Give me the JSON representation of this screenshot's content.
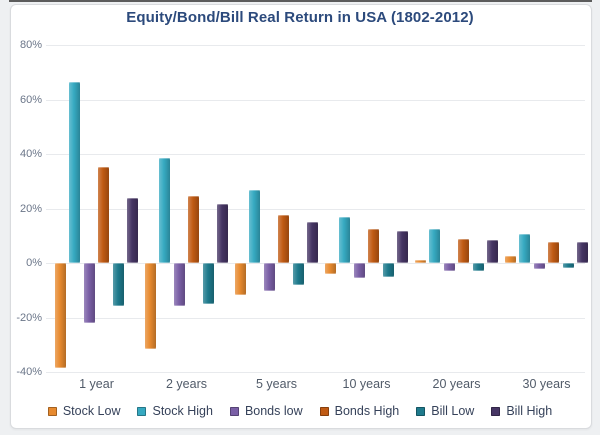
{
  "frame": {
    "top_border_color": "#424242"
  },
  "chart_data": {
    "type": "bar",
    "title": "Equity/Bond/Bill Real Return in USA (1802-2012)",
    "title_color": "#2c4a7c",
    "categories": [
      "1 year",
      "2 years",
      "5 years",
      "10 years",
      "20 years",
      "30 years"
    ],
    "series": [
      {
        "name": "Stock Low",
        "color": "#E78A2F",
        "values": [
          -38.6,
          -31.6,
          -11.9,
          -4.1,
          1.0,
          2.6
        ]
      },
      {
        "name": "Stock High",
        "color": "#36A9C1",
        "values": [
          66.6,
          38.6,
          26.7,
          16.9,
          12.6,
          10.6
        ]
      },
      {
        "name": "Bonds low",
        "color": "#7A5FA6",
        "values": [
          -21.9,
          -15.9,
          -10.1,
          -5.4,
          -3.1,
          -2.0
        ]
      },
      {
        "name": "Bonds High",
        "color": "#C05A13",
        "values": [
          35.1,
          24.7,
          17.7,
          12.4,
          8.8,
          7.8
        ]
      },
      {
        "name": "Bill Low",
        "color": "#1E7A8C",
        "values": [
          -15.6,
          -15.1,
          -8.2,
          -5.1,
          -3.0,
          -1.8
        ]
      },
      {
        "name": "Bill High",
        "color": "#463564",
        "values": [
          23.7,
          21.6,
          14.9,
          11.6,
          8.3,
          7.6
        ]
      }
    ],
    "y_axis": {
      "ticks": [
        {
          "value": 80,
          "label": "80%"
        },
        {
          "value": 60,
          "label": "60%"
        },
        {
          "value": 40,
          "label": "40%"
        },
        {
          "value": 20,
          "label": "20%"
        },
        {
          "value": 0,
          "label": "0%"
        },
        {
          "value": -20,
          "label": "-20%"
        },
        {
          "value": -40,
          "label": "-40%"
        }
      ],
      "min": -40,
      "max": 80
    },
    "grid": true,
    "legend_position": "bottom",
    "axis_text_color": "#6b7689",
    "category_text_color": "#515b69",
    "legend_text_color": "#36425a"
  }
}
